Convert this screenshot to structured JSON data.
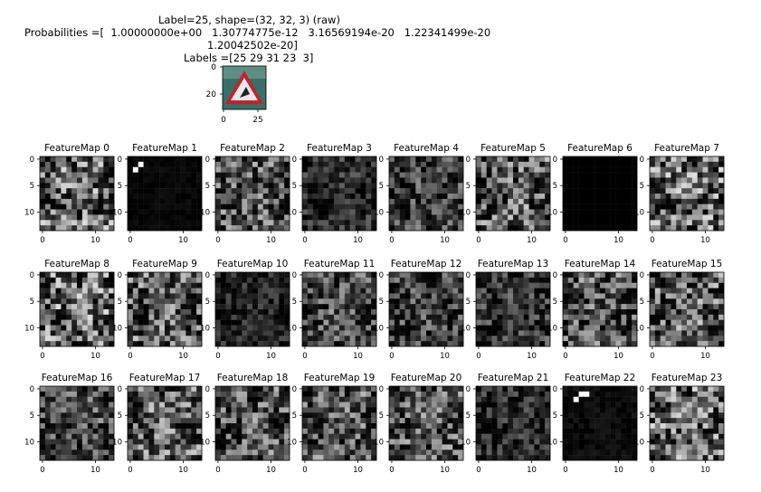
{
  "header": {
    "line1": "Label=25, shape=(32, 32, 3) (raw)",
    "line2": "Probabilities =[  1.00000000e+00   1.30774775e-12   3.16569194e-20   1.22341499e-20",
    "line3": "1.20042502e-20]",
    "line4": "Labels =[25 29 31 23  3]"
  },
  "input_image": {
    "y_ticks": [
      "0",
      "20"
    ],
    "x_ticks": [
      "0",
      "25"
    ],
    "description_colors": {
      "sign_border": "#c8202a",
      "sign_fill": "#e8e8ee",
      "bg": "#3a6e68"
    }
  },
  "chart_data": {
    "type": "heatmap",
    "grid": {
      "rows": 3,
      "cols": 8
    },
    "colormap": "gray",
    "map_size": 14,
    "y_ticks": [
      "0",
      "5",
      "10"
    ],
    "x_ticks": [
      "0",
      "10"
    ],
    "panels": [
      "FeatureMap 0",
      "FeatureMap 1",
      "FeatureMap 2",
      "FeatureMap 3",
      "FeatureMap 4",
      "FeatureMap 5",
      "FeatureMap 6",
      "FeatureMap 7",
      "FeatureMap 8",
      "FeatureMap 9",
      "FeatureMap 10",
      "FeatureMap 11",
      "FeatureMap 12",
      "FeatureMap 13",
      "FeatureMap 14",
      "FeatureMap 15",
      "FeatureMap 16",
      "FeatureMap 17",
      "FeatureMap 18",
      "FeatureMap 19",
      "FeatureMap 20",
      "FeatureMap 21",
      "FeatureMap 22",
      "FeatureMap 23"
    ],
    "activity": [
      0.55,
      0.04,
      0.45,
      0.25,
      0.35,
      0.5,
      0.0,
      0.55,
      0.55,
      0.5,
      0.2,
      0.4,
      0.35,
      0.3,
      0.45,
      0.5,
      0.4,
      0.5,
      0.45,
      0.45,
      0.45,
      0.25,
      0.06,
      0.55
    ]
  }
}
